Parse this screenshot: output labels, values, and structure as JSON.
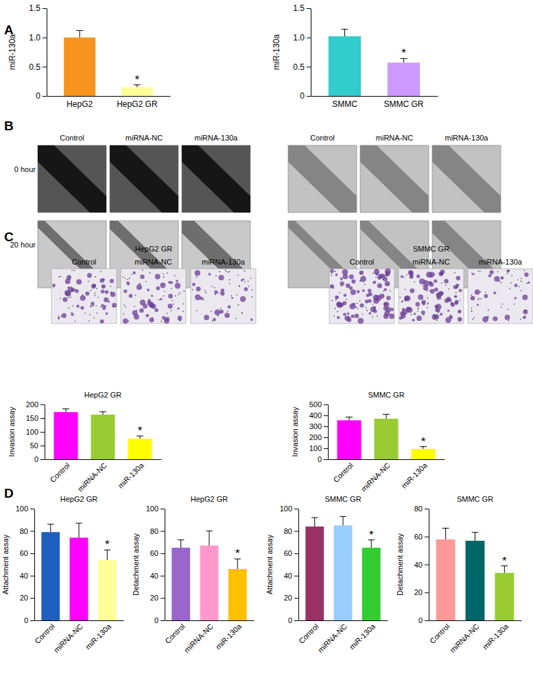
{
  "panel_labels": [
    "A",
    "B",
    "C",
    "D"
  ],
  "panel_b": {
    "columns": [
      [
        "Control",
        "miRNA-NC",
        "miRNA-130a"
      ],
      [
        "Control",
        "miRNA-NC",
        "miRNA-130a"
      ]
    ],
    "rows": [
      "0 hour",
      "20 hour"
    ]
  },
  "panel_c_images": {
    "groups": [
      {
        "title": "HepG2 GR",
        "columns": [
          "Control",
          "miRNA-NC",
          "miRNA-130a"
        ]
      },
      {
        "title": "SMMC GR",
        "columns": [
          "Control",
          "miRNA-NC",
          "miRNA-130a"
        ]
      }
    ]
  },
  "chart_data": [
    {
      "type": "bar",
      "y_label": "miR-130a",
      "categories": [
        "HepG2",
        "HepG2 GR"
      ],
      "values": [
        1.0,
        0.15
      ],
      "errors": [
        0.12,
        0.04
      ],
      "colors": [
        "#f7941d",
        "#ffff99"
      ],
      "ylim": [
        0,
        1.5
      ],
      "yticks": [
        0,
        0.5,
        {
          "value": 1,
          "label": "1.0"
        },
        1.5
      ],
      "annotations": [
        {
          "x": "HepG2 GR",
          "text": "*"
        }
      ]
    },
    {
      "type": "bar",
      "y_label": "miR-130a",
      "categories": [
        "SMMC",
        "SMMC GR"
      ],
      "values": [
        1.02,
        0.57
      ],
      "errors": [
        0.12,
        0.07
      ],
      "colors": [
        "#33cccc",
        "#cc99ff"
      ],
      "ylim": [
        0,
        1.5
      ],
      "yticks": [
        0,
        0.5,
        {
          "value": 1,
          "label": "1.0"
        },
        1.5
      ],
      "annotations": [
        {
          "x": "SMMC GR",
          "text": "*"
        }
      ]
    },
    {
      "type": "bar",
      "title": "HepG2 GR",
      "y_label": "Invasion assay",
      "categories": [
        "Control",
        "miRNA-NC",
        "miR-130a"
      ],
      "values": [
        172,
        163,
        75
      ],
      "errors": [
        12,
        10,
        10
      ],
      "colors": [
        "#ff00ff",
        "#99cc33",
        "#ffff00"
      ],
      "ylim": [
        0,
        200
      ],
      "yticks": [
        0,
        50,
        100,
        150,
        200
      ],
      "annotations": [
        {
          "x": "miR-130a",
          "text": "*"
        }
      ]
    },
    {
      "type": "bar",
      "title": "SMMC GR",
      "y_label": "Invasion assay",
      "categories": [
        "Control",
        "miRNA-NC",
        "miR-130a"
      ],
      "values": [
        355,
        370,
        95
      ],
      "errors": [
        30,
        40,
        20
      ],
      "colors": [
        "#ff00ff",
        "#99cc33",
        "#ffff00"
      ],
      "ylim": [
        0,
        500
      ],
      "yticks": [
        0,
        100,
        200,
        300,
        400,
        500
      ],
      "annotations": [
        {
          "x": "miR-130a",
          "text": "*"
        }
      ]
    },
    {
      "type": "bar",
      "title": "HepG2 GR",
      "y_label": "Attachment assay",
      "categories": [
        "Control",
        "miRNA-NC",
        "miR-130a"
      ],
      "values": [
        79,
        74,
        54
      ],
      "errors": [
        7,
        13,
        9
      ],
      "colors": [
        "#1f5fbf",
        "#ff00ff",
        "#ffff99"
      ],
      "ylim": [
        0,
        100
      ],
      "yticks": [
        0,
        20,
        40,
        60,
        80,
        100
      ],
      "annotations": [
        {
          "x": "miR-130a",
          "text": "*"
        }
      ]
    },
    {
      "type": "bar",
      "title": "HepG2 GR",
      "y_label": "Detachment assay",
      "categories": [
        "Control",
        "miRNA-NC",
        "miR-130a"
      ],
      "values": [
        65,
        67,
        46
      ],
      "errors": [
        7,
        13,
        9
      ],
      "colors": [
        "#9966cc",
        "#ff99cc",
        "#ffc000"
      ],
      "ylim": [
        0,
        100
      ],
      "yticks": [
        0,
        20,
        40,
        60,
        80,
        100
      ],
      "annotations": [
        {
          "x": "miR-130a",
          "text": "*"
        }
      ]
    },
    {
      "type": "bar",
      "title": "SMMC GR",
      "y_label": "Attachment assay",
      "categories": [
        "Control",
        "miRNA-NC",
        "miR-130a"
      ],
      "values": [
        84,
        85,
        65
      ],
      "errors": [
        8,
        8,
        7
      ],
      "colors": [
        "#993366",
        "#99ccff",
        "#33cc33"
      ],
      "ylim": [
        0,
        100
      ],
      "yticks": [
        0,
        20,
        40,
        60,
        80,
        100
      ],
      "annotations": [
        {
          "x": "miR-130a",
          "text": "*"
        }
      ]
    },
    {
      "type": "bar",
      "title": "SMMC GR",
      "y_label": "Detachment assay",
      "categories": [
        "Control",
        "miRNA-NC",
        "miR-130a"
      ],
      "values": [
        58,
        57,
        34
      ],
      "errors": [
        8,
        6,
        5
      ],
      "colors": [
        "#ff9999",
        "#006666",
        "#99cc33"
      ],
      "ylim": [
        0,
        80
      ],
      "yticks": [
        0,
        20,
        40,
        60,
        80
      ],
      "annotations": [
        {
          "x": "miR-130a",
          "text": "*"
        }
      ]
    }
  ]
}
